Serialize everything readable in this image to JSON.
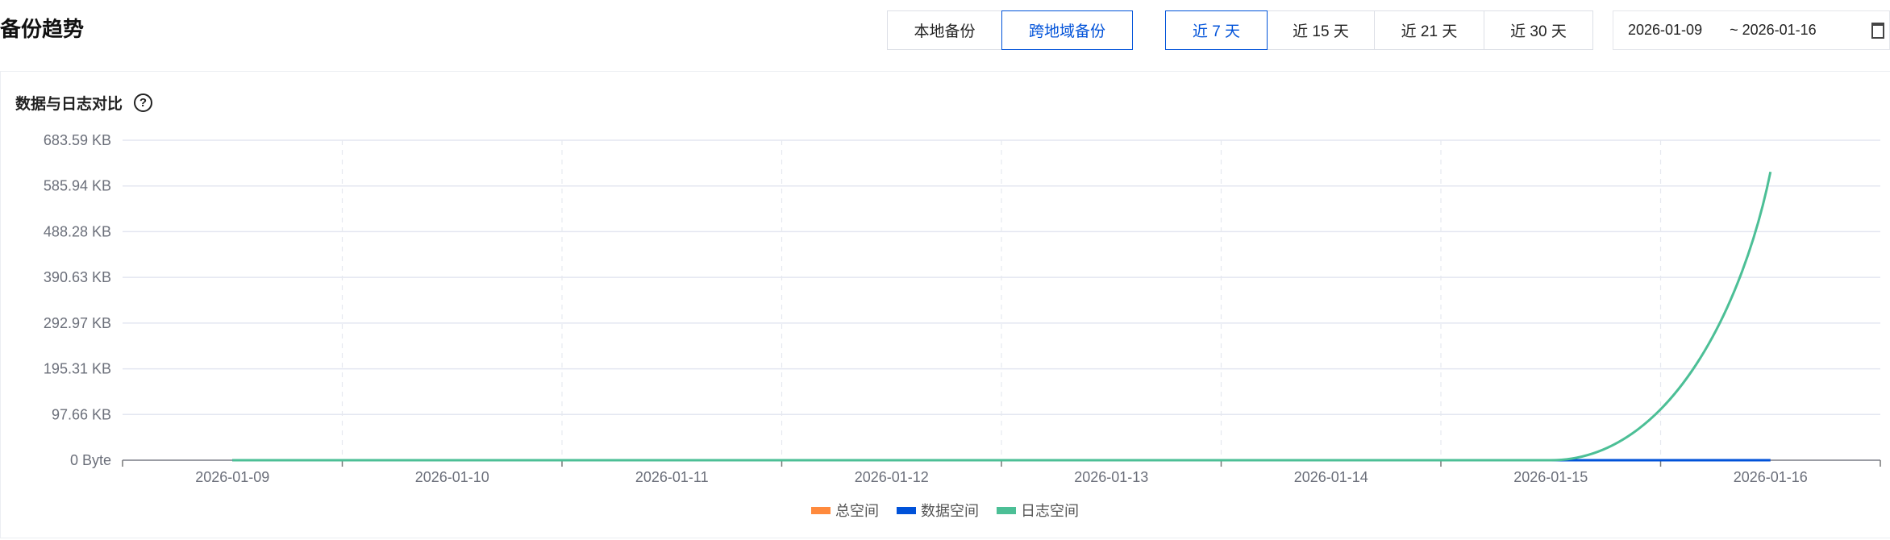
{
  "header": {
    "title": "备份趋势"
  },
  "backup_type_tabs": [
    {
      "label": "本地备份",
      "active": false
    },
    {
      "label": "跨地域备份",
      "active": true
    }
  ],
  "range_tabs": [
    {
      "label": "近 7 天",
      "active": true
    },
    {
      "label": "近 15 天",
      "active": false
    },
    {
      "label": "近 21 天",
      "active": false
    },
    {
      "label": "近 30 天",
      "active": false
    }
  ],
  "date_range": {
    "start": "2026-01-09",
    "end": "~ 2026-01-16",
    "icon": "calendar-icon"
  },
  "card": {
    "title": "数据与日志对比",
    "help_icon": "question-circle-icon",
    "help_glyph": "?"
  },
  "colors": {
    "accent": "#0052d9"
  },
  "chart_data": {
    "type": "line",
    "title": "数据与日志对比",
    "categories": [
      "2026-01-09",
      "2026-01-10",
      "2026-01-11",
      "2026-01-12",
      "2026-01-13",
      "2026-01-14",
      "2026-01-15",
      "2026-01-16"
    ],
    "y_ticks": [
      "0 Byte",
      "97.66 KB",
      "195.31 KB",
      "292.97 KB",
      "390.63 KB",
      "488.28 KB",
      "585.94 KB",
      "683.59 KB"
    ],
    "ylim_kb": [
      0,
      683.59
    ],
    "smooth": true,
    "grid": true,
    "legend_position": "bottom",
    "series": [
      {
        "name": "总空间",
        "color": "#ff8a3d",
        "values_kb": [
          0,
          0,
          0,
          0,
          0,
          0,
          0,
          0
        ]
      },
      {
        "name": "数据空间",
        "color": "#0052d9",
        "values_kb": [
          0,
          0,
          0,
          0,
          0,
          0,
          0,
          0
        ]
      },
      {
        "name": "日志空间",
        "color": "#4cbf96",
        "values_kb": [
          0,
          0,
          0,
          0,
          0,
          0,
          0,
          616
        ]
      }
    ]
  }
}
